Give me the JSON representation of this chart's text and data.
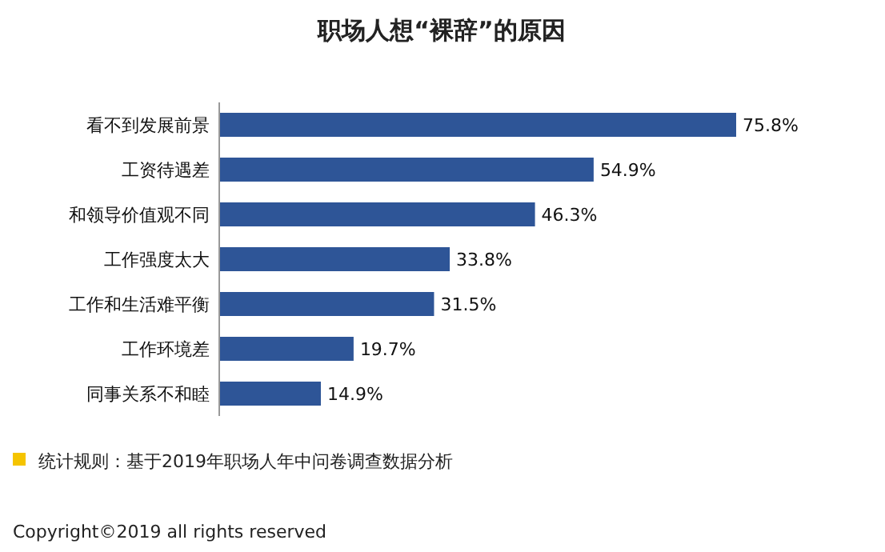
{
  "chart_data": {
    "type": "bar",
    "orientation": "horizontal",
    "title": "职场人想“裸辞”的原因",
    "categories": [
      "看不到发展前景",
      "工资待遇差",
      "和领导价值观不同",
      "工作强度太大",
      "工作和生活难平衡",
      "工作环境差",
      "同事关系不和睦"
    ],
    "values": [
      75.8,
      54.9,
      46.3,
      33.8,
      31.5,
      19.7,
      14.9
    ],
    "value_labels": [
      "75.8%",
      "54.9%",
      "46.3%",
      "33.8%",
      "31.5%",
      "19.7%",
      "14.9%"
    ],
    "color": "#2e5597",
    "annotations": [
      "统计规则：基于2019年职场人年中问卷调查数据分析",
      "Copyright©2019 all rights reserved"
    ]
  }
}
